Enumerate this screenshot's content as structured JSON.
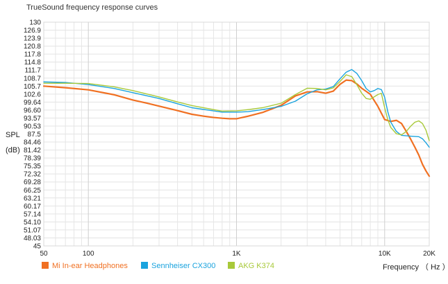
{
  "chart_data": {
    "type": "line",
    "title": "TrueSound frequency response curves",
    "ylabel_top": "SPL",
    "ylabel_bottom": "(dB)",
    "xlabel": "Frequency （ Hz ）",
    "x_scale": "log",
    "xlim": [
      50,
      20000
    ],
    "ylim": [
      45,
      130
    ],
    "y_ticks": [
      "130",
      "126.9",
      "123.9",
      "120.8",
      "117.8",
      "114.8",
      "111.7",
      "108.7",
      "105.7",
      "102.6",
      "99.64",
      "96.60",
      "93.57",
      "90.53",
      "87.5",
      "84.46",
      "81.42",
      "78.39",
      "75.35",
      "72.32",
      "69.28",
      "66.25",
      "63.21",
      "60.17",
      "57.14",
      "54.10",
      "51.07",
      "48.03",
      "45"
    ],
    "x_ticks": [
      {
        "value": 50,
        "label": "50"
      },
      {
        "value": 100,
        "label": "100"
      },
      {
        "value": 1000,
        "label": "1K"
      },
      {
        "value": 10000,
        "label": "10K"
      },
      {
        "value": 20000,
        "label": "20K"
      }
    ],
    "grid": true,
    "legend_position": "bottom-left",
    "series": [
      {
        "name": "Mi In-ear Headphones",
        "color": "#f07022",
        "points": [
          [
            50,
            105.7
          ],
          [
            70,
            105.1
          ],
          [
            100,
            104.3
          ],
          [
            150,
            102.4
          ],
          [
            200,
            100.4
          ],
          [
            250,
            99.2
          ],
          [
            300,
            98.1
          ],
          [
            400,
            96.4
          ],
          [
            500,
            95.0
          ],
          [
            600,
            94.3
          ],
          [
            700,
            93.8
          ],
          [
            800,
            93.5
          ],
          [
            900,
            93.3
          ],
          [
            1000,
            93.3
          ],
          [
            1200,
            94.3
          ],
          [
            1500,
            95.7
          ],
          [
            2000,
            98.4
          ],
          [
            2500,
            102.0
          ],
          [
            3000,
            103.5
          ],
          [
            3500,
            103.6
          ],
          [
            4000,
            103.0
          ],
          [
            4500,
            103.8
          ],
          [
            5000,
            106.4
          ],
          [
            5500,
            108.0
          ],
          [
            6000,
            107.8
          ],
          [
            6500,
            106.5
          ],
          [
            7000,
            104.9
          ],
          [
            8000,
            102.6
          ],
          [
            9000,
            98.0
          ],
          [
            10000,
            93.0
          ],
          [
            11000,
            92.3
          ],
          [
            12000,
            92.7
          ],
          [
            13000,
            91.5
          ],
          [
            14000,
            88.5
          ],
          [
            15000,
            85.5
          ],
          [
            16000,
            82.5
          ],
          [
            17000,
            79.5
          ],
          [
            18000,
            76.0
          ],
          [
            19000,
            73.5
          ],
          [
            20000,
            71.5
          ]
        ]
      },
      {
        "name": "Sennheiser CX300",
        "color": "#1aa3de",
        "points": [
          [
            50,
            107.3
          ],
          [
            70,
            107.1
          ],
          [
            100,
            106.3
          ],
          [
            150,
            104.8
          ],
          [
            200,
            103.2
          ],
          [
            300,
            101.0
          ],
          [
            400,
            99.0
          ],
          [
            500,
            97.5
          ],
          [
            700,
            96.3
          ],
          [
            800,
            95.8
          ],
          [
            1000,
            95.8
          ],
          [
            1200,
            96.0
          ],
          [
            1500,
            96.8
          ],
          [
            2000,
            98.0
          ],
          [
            2500,
            100.0
          ],
          [
            3000,
            102.8
          ],
          [
            3500,
            104.3
          ],
          [
            4000,
            104.6
          ],
          [
            4500,
            105.5
          ],
          [
            5000,
            108.5
          ],
          [
            5500,
            111.0
          ],
          [
            6000,
            112.0
          ],
          [
            6500,
            110.5
          ],
          [
            7000,
            107.8
          ],
          [
            7500,
            104.8
          ],
          [
            8000,
            103.5
          ],
          [
            8500,
            104.0
          ],
          [
            9000,
            104.8
          ],
          [
            9500,
            104.4
          ],
          [
            10000,
            101.5
          ],
          [
            10500,
            96.0
          ],
          [
            11000,
            92.0
          ],
          [
            12000,
            88.5
          ],
          [
            13000,
            87.0
          ],
          [
            15000,
            86.7
          ],
          [
            17000,
            86.5
          ],
          [
            18000,
            85.7
          ],
          [
            19000,
            84.2
          ],
          [
            20000,
            82.5
          ]
        ]
      },
      {
        "name": "AKG K374",
        "color": "#a8c93a",
        "points": [
          [
            50,
            106.8
          ],
          [
            70,
            106.8
          ],
          [
            100,
            106.7
          ],
          [
            150,
            105.4
          ],
          [
            200,
            104.0
          ],
          [
            300,
            101.6
          ],
          [
            400,
            99.7
          ],
          [
            500,
            98.3
          ],
          [
            700,
            96.8
          ],
          [
            800,
            96.2
          ],
          [
            1000,
            96.3
          ],
          [
            1200,
            96.8
          ],
          [
            1500,
            97.5
          ],
          [
            2000,
            99.2
          ],
          [
            2500,
            102.5
          ],
          [
            3000,
            104.9
          ],
          [
            3500,
            104.8
          ],
          [
            4000,
            104.3
          ],
          [
            4500,
            105.0
          ],
          [
            5000,
            107.5
          ],
          [
            5500,
            110.0
          ],
          [
            6000,
            109.3
          ],
          [
            6500,
            106.2
          ],
          [
            7000,
            103.0
          ],
          [
            7500,
            101.0
          ],
          [
            8000,
            100.7
          ],
          [
            9000,
            102.5
          ],
          [
            9500,
            103.0
          ],
          [
            10000,
            97.5
          ],
          [
            10500,
            93.0
          ],
          [
            11000,
            90.0
          ],
          [
            12000,
            87.6
          ],
          [
            13000,
            87.2
          ],
          [
            14000,
            88.5
          ],
          [
            15000,
            90.5
          ],
          [
            16000,
            92.0
          ],
          [
            17000,
            92.5
          ],
          [
            18000,
            91.5
          ],
          [
            19000,
            89.0
          ],
          [
            20000,
            85.0
          ]
        ]
      }
    ]
  }
}
